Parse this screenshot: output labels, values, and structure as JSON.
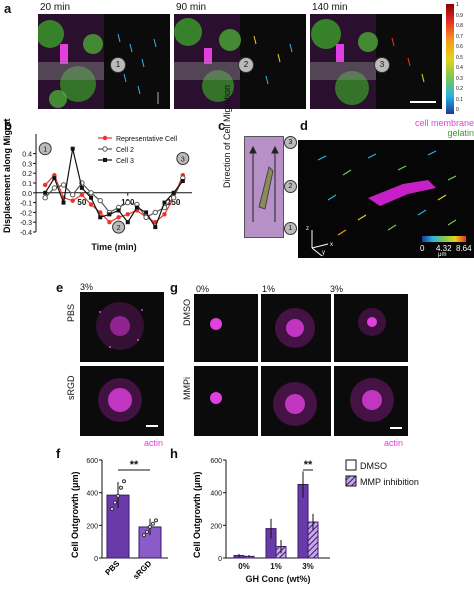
{
  "panels": {
    "a": {
      "letter": "a",
      "times": [
        "20 min",
        "90 min",
        "140 min"
      ],
      "markers": [
        "1",
        "2",
        "3"
      ],
      "colorbar_ticks": [
        "1",
        "0.9",
        "0.8",
        "0.7",
        "0.6",
        "0.5",
        "0.4",
        "0.3",
        "0.2",
        "0.1",
        "0"
      ]
    },
    "b": {
      "letter": "b",
      "markers": [
        "1",
        "2",
        "3"
      ]
    },
    "c": {
      "letter": "c",
      "label": "Direction of Cell Migration",
      "markers": [
        "3",
        "2",
        "1"
      ]
    },
    "d": {
      "letter": "d",
      "legend_membrane": "cell membrane",
      "legend_gelatin": "gelatin",
      "colorbar_ticks": [
        "0",
        "4.32",
        "8.64"
      ],
      "colorbar_unit": "μm",
      "axes": [
        "z",
        "x",
        "y"
      ]
    },
    "e": {
      "letter": "e",
      "conc": "3%",
      "rows": [
        "PBS",
        "sRGD"
      ],
      "stain": "actin"
    },
    "g": {
      "letter": "g",
      "concs": [
        "0%",
        "1%",
        "3%"
      ],
      "rows": [
        "DMSO",
        "MMPi"
      ],
      "stain": "actin"
    },
    "f": {
      "letter": "f"
    },
    "h": {
      "letter": "h",
      "legend": [
        "DMSO",
        "MMP inhibition"
      ]
    }
  },
  "chart_data": [
    {
      "type": "line",
      "panel": "b",
      "xlabel": "Time (min)",
      "ylabel": "Displacement along Migration Axis (μm)",
      "xlim": [
        0,
        170
      ],
      "ylim": [
        -0.4,
        0.6
      ],
      "xticks": [
        50,
        100,
        150
      ],
      "yticks": [
        -0.4,
        -0.3,
        -0.2,
        -0.1,
        0.0,
        0.1,
        0.2,
        0.3,
        0.4
      ],
      "series": [
        {
          "name": "Representative Cell",
          "color": "#e8322a",
          "x": [
            10,
            20,
            30,
            40,
            50,
            60,
            70,
            80,
            90,
            100,
            110,
            120,
            130,
            140,
            150,
            160
          ],
          "y": [
            0.08,
            0.18,
            -0.05,
            -0.08,
            -0.02,
            -0.12,
            -0.2,
            -0.3,
            -0.25,
            -0.22,
            -0.18,
            -0.25,
            -0.3,
            -0.22,
            -0.05,
            0.18
          ]
        },
        {
          "name": "Cell 2",
          "color": "#555555",
          "x": [
            10,
            20,
            30,
            40,
            50,
            60,
            70,
            80,
            90,
            100,
            110,
            120,
            130,
            140,
            150,
            160
          ],
          "y": [
            -0.05,
            0.05,
            0.08,
            -0.02,
            0.1,
            0.0,
            -0.08,
            -0.2,
            -0.15,
            -0.1,
            -0.12,
            -0.25,
            -0.2,
            -0.15,
            -0.05,
            0.15
          ]
        },
        {
          "name": "Cell 3",
          "color": "#111111",
          "x": [
            10,
            20,
            30,
            40,
            50,
            60,
            70,
            80,
            90,
            100,
            110,
            120,
            130,
            140,
            150,
            160
          ],
          "y": [
            0.0,
            0.15,
            -0.1,
            0.45,
            0.05,
            -0.05,
            -0.25,
            -0.22,
            -0.18,
            -0.3,
            -0.15,
            -0.2,
            -0.35,
            -0.1,
            0.0,
            0.12
          ]
        }
      ]
    },
    {
      "type": "bar",
      "panel": "f",
      "ylabel": "Cell Outgrowth (μm)",
      "categories": [
        "PBS",
        "sRGD"
      ],
      "values": [
        385,
        190
      ],
      "errors": [
        80,
        50
      ],
      "ylim": [
        0,
        600
      ],
      "yticks": [
        0,
        200,
        400,
        600
      ],
      "significance": "**",
      "points": [
        [
          300,
          340,
          380,
          430,
          470
        ],
        [
          140,
          160,
          190,
          210,
          230
        ]
      ]
    },
    {
      "type": "bar",
      "panel": "h",
      "ylabel": "Cell Outgrowth (μm)",
      "xlabel": "GH Conc (wt%)",
      "categories": [
        "0%",
        "1%",
        "3%"
      ],
      "ylim": [
        0,
        600
      ],
      "yticks": [
        0,
        200,
        400,
        600
      ],
      "significance": "**",
      "series": [
        {
          "name": "DMSO",
          "values": [
            15,
            180,
            450
          ],
          "errors": [
            10,
            60,
            80
          ]
        },
        {
          "name": "MMP inhibition",
          "values": [
            10,
            70,
            220
          ],
          "errors": [
            8,
            40,
            50
          ]
        }
      ]
    }
  ]
}
